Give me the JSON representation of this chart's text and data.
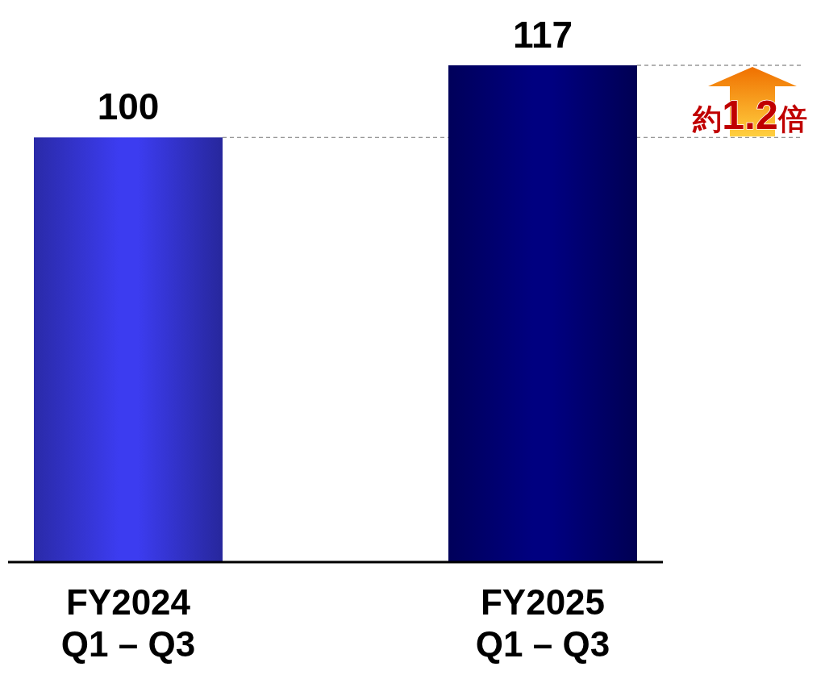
{
  "chart_data": {
    "type": "bar",
    "categories": [
      "FY2024\nQ1 – Q3",
      "FY2025\nQ1 – Q3"
    ],
    "values": [
      100,
      117
    ],
    "colors": [
      "#3c3cf0",
      "#000080"
    ],
    "data_labels": true,
    "ref_lines": [
      {
        "axis": "y",
        "value": 100,
        "color": "#999999",
        "line_style": "dashed"
      },
      {
        "axis": "y",
        "value": 117,
        "color": "#999999",
        "line_style": "dashed"
      }
    ],
    "annotations": [
      "約1.2倍"
    ]
  }
}
